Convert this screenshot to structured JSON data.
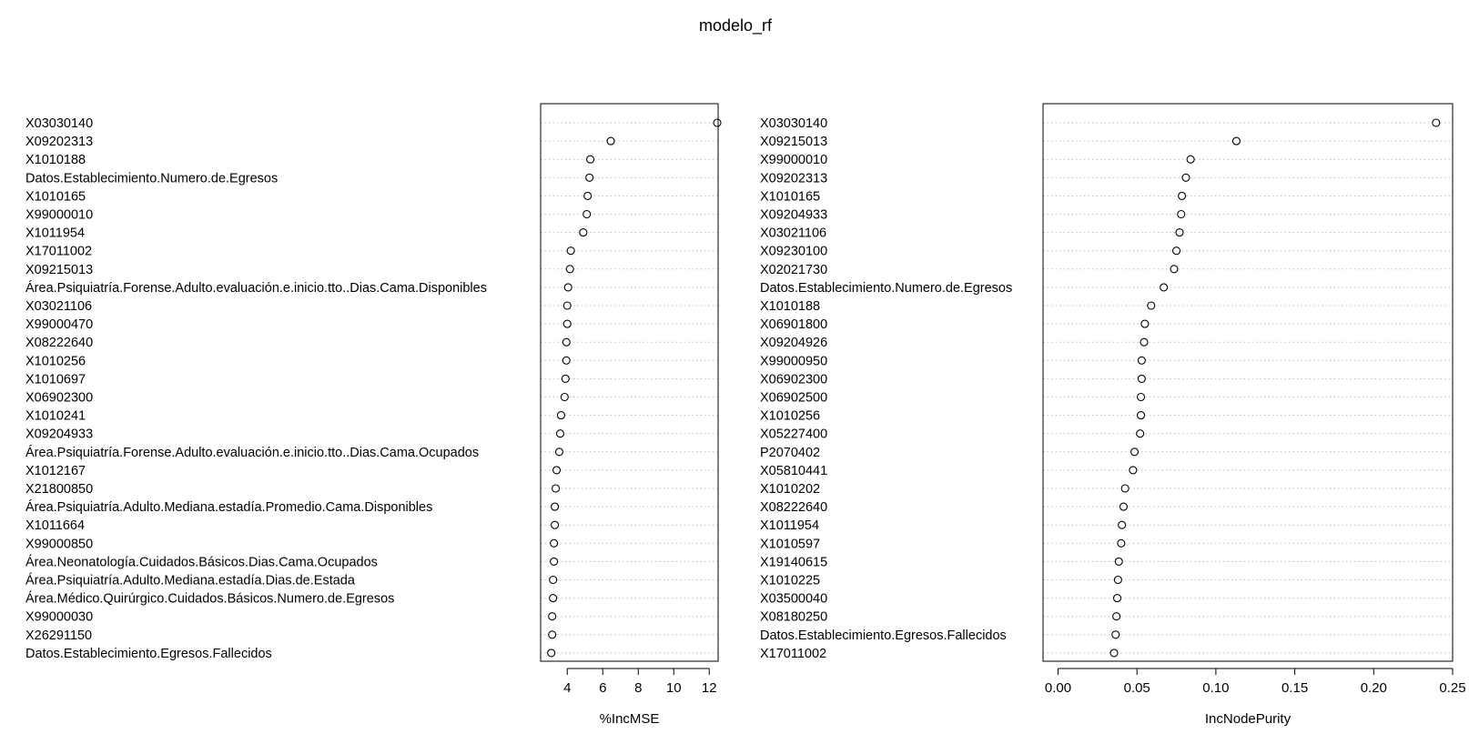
{
  "title": "modelo_rf",
  "chart_data": [
    {
      "type": "scatter",
      "subtype": "dotchart",
      "xlabel": "%IncMSE",
      "xlim": [
        2.5,
        12.5
      ],
      "xticks": [
        4,
        6,
        8,
        10,
        12
      ],
      "grid": "horizontal dotted",
      "marker": "open circle",
      "categories": [
        "X03030140",
        "X09202313",
        "X1010188",
        "Datos.Establecimiento.Numero.de.Egresos",
        "X1010165",
        "X99000010",
        "X1011954",
        "X17011002",
        "X09215013",
        "Área.Psiquiatría.Forense.Adulto.evaluación.e.inicio.tto..Dias.Cama.Disponibles",
        "X03021106",
        "X99000470",
        "X08222640",
        "X1010256",
        "X1010697",
        "X06902300",
        "X1010241",
        "X09204933",
        "Área.Psiquiatría.Forense.Adulto.evaluación.e.inicio.tto..Dias.Cama.Ocupados",
        "X1012167",
        "X21800850",
        "Área.Psiquiatría.Adulto.Mediana.estadía.Promedio.Cama.Disponibles",
        "X1011664",
        "X99000850",
        "Área.Neonatología.Cuidados.Básicos.Dias.Cama.Ocupados",
        "Área.Psiquiatría.Adulto.Mediana.estadía.Dias.de.Estada",
        "Área.Médico.Quirúrgico.Cuidados.Básicos.Numero.de.Egresos",
        "X99000030",
        "X26291150",
        "Datos.Establecimiento.Egresos.Fallecidos"
      ],
      "values": [
        12.45,
        6.45,
        5.3,
        5.25,
        5.15,
        5.1,
        4.9,
        4.2,
        4.15,
        4.05,
        4.0,
        4.0,
        3.95,
        3.95,
        3.9,
        3.85,
        3.65,
        3.6,
        3.55,
        3.4,
        3.35,
        3.3,
        3.3,
        3.25,
        3.25,
        3.2,
        3.2,
        3.15,
        3.15,
        3.1
      ]
    },
    {
      "type": "scatter",
      "subtype": "dotchart",
      "xlabel": "IncNodePurity",
      "xlim": [
        -0.0095,
        0.25
      ],
      "xticks": [
        "0.00",
        "0.05",
        "0.10",
        "0.15",
        "0.20",
        "0.25"
      ],
      "grid": "horizontal dotted",
      "marker": "open circle",
      "categories": [
        "X03030140",
        "X09215013",
        "X99000010",
        "X09202313",
        "X1010165",
        "X09204933",
        "X03021106",
        "X09230100",
        "X02021730",
        "Datos.Establecimiento.Numero.de.Egresos",
        "X1010188",
        "X06901800",
        "X09204926",
        "X99000950",
        "X06902300",
        "X06902500",
        "X1010256",
        "X05227400",
        "P2070402",
        "X05810441",
        "X1010202",
        "X08222640",
        "X1011954",
        "X1010597",
        "X19140615",
        "X1010225",
        "X03500040",
        "X08180250",
        "Datos.Establecimiento.Egresos.Fallecidos",
        "X17011002"
      ],
      "values": [
        0.2395,
        0.113,
        0.084,
        0.081,
        0.0785,
        0.078,
        0.077,
        0.075,
        0.0735,
        0.067,
        0.059,
        0.055,
        0.0545,
        0.053,
        0.053,
        0.0525,
        0.0525,
        0.052,
        0.0485,
        0.0475,
        0.0425,
        0.0415,
        0.0405,
        0.04,
        0.0385,
        0.038,
        0.0375,
        0.037,
        0.0365,
        0.0355
      ]
    }
  ]
}
